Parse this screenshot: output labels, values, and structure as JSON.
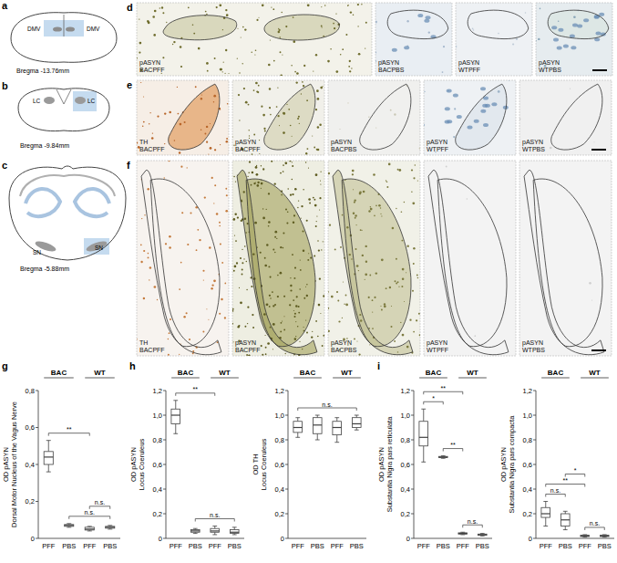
{
  "figure": {
    "schematics": [
      {
        "panel": "a",
        "bregma": "Bregma -13.76mm",
        "regions": [
          "DMV",
          "DMV"
        ]
      },
      {
        "panel": "b",
        "bregma": "Bregma -9.84mm",
        "regions": [
          "LC",
          "LC"
        ]
      },
      {
        "panel": "c",
        "bregma": "Bregma -5.88mm",
        "regions": [
          "SN",
          "SN"
        ]
      }
    ],
    "micrographs": [
      {
        "panel": "d",
        "tiles": [
          {
            "stain": "pASYN",
            "group": "BACPFF"
          },
          {
            "stain": "pASYN",
            "group": "BACPBS"
          },
          {
            "stain": "pASYN",
            "group": "WTPFF"
          },
          {
            "stain": "pASYN",
            "group": "WTPBS"
          }
        ]
      },
      {
        "panel": "e",
        "tiles": [
          {
            "stain": "TH",
            "group": "BACPFF"
          },
          {
            "stain": "pASYN",
            "group": "BACPFF"
          },
          {
            "stain": "pASYN",
            "group": "BACPBS"
          },
          {
            "stain": "pASYN",
            "group": "WTPFF"
          },
          {
            "stain": "pASYN",
            "group": "WTPBS"
          }
        ]
      },
      {
        "panel": "f",
        "tiles": [
          {
            "stain": "TH",
            "group": "BACPFF"
          },
          {
            "stain": "pASYN",
            "group": "BACPFF"
          },
          {
            "stain": "pASYN",
            "group": "BACPBS"
          },
          {
            "stain": "pASYN",
            "group": "WTPFF"
          },
          {
            "stain": "pASYN",
            "group": "WTPBS"
          }
        ]
      }
    ]
  },
  "chart_data": [
    {
      "type": "box",
      "panel": "g",
      "y_label": [
        "OD pASYN",
        "Dorsal Motor Nucleus of the Vagus Nerve"
      ],
      "groups": [
        "BAC",
        "WT"
      ],
      "categories": [
        "PFF",
        "PBS",
        "PFF",
        "PBS"
      ],
      "color": "#404040",
      "min": [
        0.36,
        0.06,
        0.04,
        0.05
      ],
      "q1": [
        0.4,
        0.065,
        0.045,
        0.055
      ],
      "median": [
        0.44,
        0.07,
        0.05,
        0.06
      ],
      "q3": [
        0.47,
        0.075,
        0.06,
        0.065
      ],
      "max": [
        0.53,
        0.08,
        0.065,
        0.07
      ],
      "ylim": [
        0,
        0.8
      ],
      "yticks": [
        0,
        {
          "value": 0.2,
          "label": "0,2"
        },
        {
          "value": 0.4,
          "label": "0,4"
        },
        {
          "value": 0.6,
          "label": "0,6"
        },
        {
          "value": 0.8,
          "label": "0,8"
        }
      ],
      "significance": [
        {
          "from": 0,
          "to": 2,
          "label": "**"
        },
        {
          "from": 1,
          "to": 3,
          "label": "n.s."
        },
        {
          "from": 2,
          "to": 3,
          "label": "n.s."
        }
      ]
    },
    {
      "type": "box",
      "panel": "h",
      "y_label": [
        "OD pASYN",
        "Locus Coeruleus"
      ],
      "groups": [
        "BAC",
        "WT"
      ],
      "categories": [
        "PFF",
        "PBS",
        "PFF",
        "PBS"
      ],
      "color": "#404040",
      "min": [
        0.85,
        0.04,
        0.03,
        0.03
      ],
      "q1": [
        0.93,
        0.05,
        0.05,
        0.04
      ],
      "median": [
        1.0,
        0.06,
        0.06,
        0.05
      ],
      "q3": [
        1.05,
        0.07,
        0.08,
        0.07
      ],
      "max": [
        1.12,
        0.08,
        0.1,
        0.09
      ],
      "ylim": [
        0,
        1.2
      ],
      "yticks": [
        0,
        {
          "value": 0.2,
          "label": "0,2"
        },
        {
          "value": 0.4,
          "label": "0,4"
        },
        {
          "value": 0.6,
          "label": "0,6"
        },
        {
          "value": 0.8,
          "label": "0,8"
        },
        {
          "value": 1,
          "label": "1,0"
        },
        {
          "value": 1.2,
          "label": "1,2"
        }
      ],
      "significance": [
        {
          "from": 0,
          "to": 2,
          "label": "**"
        },
        {
          "from": 1,
          "to": 3,
          "label": "n.s."
        }
      ]
    },
    {
      "type": "box",
      "y_label": [
        "OD TH",
        "Locus Coeruleus"
      ],
      "groups": [
        "BAC",
        "WT"
      ],
      "categories": [
        "PFF",
        "PBS",
        "PFF",
        "PBS"
      ],
      "color": "#404040",
      "min": [
        0.82,
        0.8,
        0.78,
        0.88
      ],
      "q1": [
        0.86,
        0.85,
        0.84,
        0.9
      ],
      "median": [
        0.9,
        0.92,
        0.9,
        0.93
      ],
      "q3": [
        0.95,
        0.98,
        0.95,
        0.98
      ],
      "max": [
        0.98,
        1.0,
        0.98,
        1.0
      ],
      "ylim": [
        0,
        1.2
      ],
      "yticks": [
        0,
        {
          "value": 0.2,
          "label": "0,2"
        },
        {
          "value": 0.4,
          "label": "0,4"
        },
        {
          "value": 0.6,
          "label": "0,6"
        },
        {
          "value": 0.8,
          "label": "0,8"
        },
        {
          "value": 1,
          "label": "1,0"
        },
        {
          "value": 1.2,
          "label": "1,2"
        }
      ],
      "significance": [
        {
          "from": 0,
          "to": 3,
          "label": "n.s."
        }
      ]
    },
    {
      "type": "box",
      "panel": "i",
      "y_label": [
        "OD pASYN",
        "Substantia Nigra pars reticulata"
      ],
      "groups": [
        "BAC",
        "WT"
      ],
      "categories": [
        "PFF",
        "PBS",
        "PFF",
        "PBS"
      ],
      "color": "#404040",
      "min": [
        0.62,
        0.65,
        0.03,
        0.02
      ],
      "q1": [
        0.75,
        0.655,
        0.035,
        0.025
      ],
      "median": [
        0.82,
        0.66,
        0.04,
        0.03
      ],
      "q3": [
        0.95,
        0.665,
        0.045,
        0.035
      ],
      "max": [
        1.05,
        0.67,
        0.05,
        0.04
      ],
      "ylim": [
        0,
        1.2
      ],
      "yticks": [
        0,
        {
          "value": 0.2,
          "label": "0,2"
        },
        {
          "value": 0.4,
          "label": "0,4"
        },
        {
          "value": 0.6,
          "label": "0,6"
        },
        {
          "value": 0.8,
          "label": "0,8"
        },
        {
          "value": 1,
          "label": "1,0"
        },
        {
          "value": 1.2,
          "label": "1,2"
        }
      ],
      "significance": [
        {
          "from": 0,
          "to": 1,
          "label": "*"
        },
        {
          "from": 0,
          "to": 2,
          "label": "**"
        },
        {
          "from": 1,
          "to": 2,
          "label": "**"
        },
        {
          "from": 2,
          "to": 3,
          "label": "n.s."
        }
      ]
    },
    {
      "type": "box",
      "y_label": [
        "OD pASYN",
        "Substantia Nigra pars compacta"
      ],
      "groups": [
        "BAC",
        "WT"
      ],
      "categories": [
        "PFF",
        "PBS",
        "PFF",
        "PBS"
      ],
      "color": "#404040",
      "min": [
        0.1,
        0.07,
        0.01,
        0.01
      ],
      "q1": [
        0.17,
        0.1,
        0.015,
        0.015
      ],
      "median": [
        0.2,
        0.15,
        0.02,
        0.02
      ],
      "q3": [
        0.25,
        0.2,
        0.025,
        0.025
      ],
      "max": [
        0.3,
        0.22,
        0.03,
        0.03
      ],
      "ylim": [
        0,
        1.2
      ],
      "yticks": [
        0,
        {
          "value": 0.2,
          "label": "0,2"
        },
        {
          "value": 0.4,
          "label": "0,4"
        },
        {
          "value": 0.6,
          "label": "0,6"
        },
        {
          "value": 0.8,
          "label": "0,8"
        },
        {
          "value": 1,
          "label": "1,0"
        },
        {
          "value": 1.2,
          "label": "1,2"
        }
      ],
      "significance": [
        {
          "from": 0,
          "to": 1,
          "label": "n.s."
        },
        {
          "from": 0,
          "to": 2,
          "label": "**"
        },
        {
          "from": 1,
          "to": 2,
          "label": "*"
        },
        {
          "from": 2,
          "to": 3,
          "label": "n.s."
        }
      ]
    }
  ]
}
